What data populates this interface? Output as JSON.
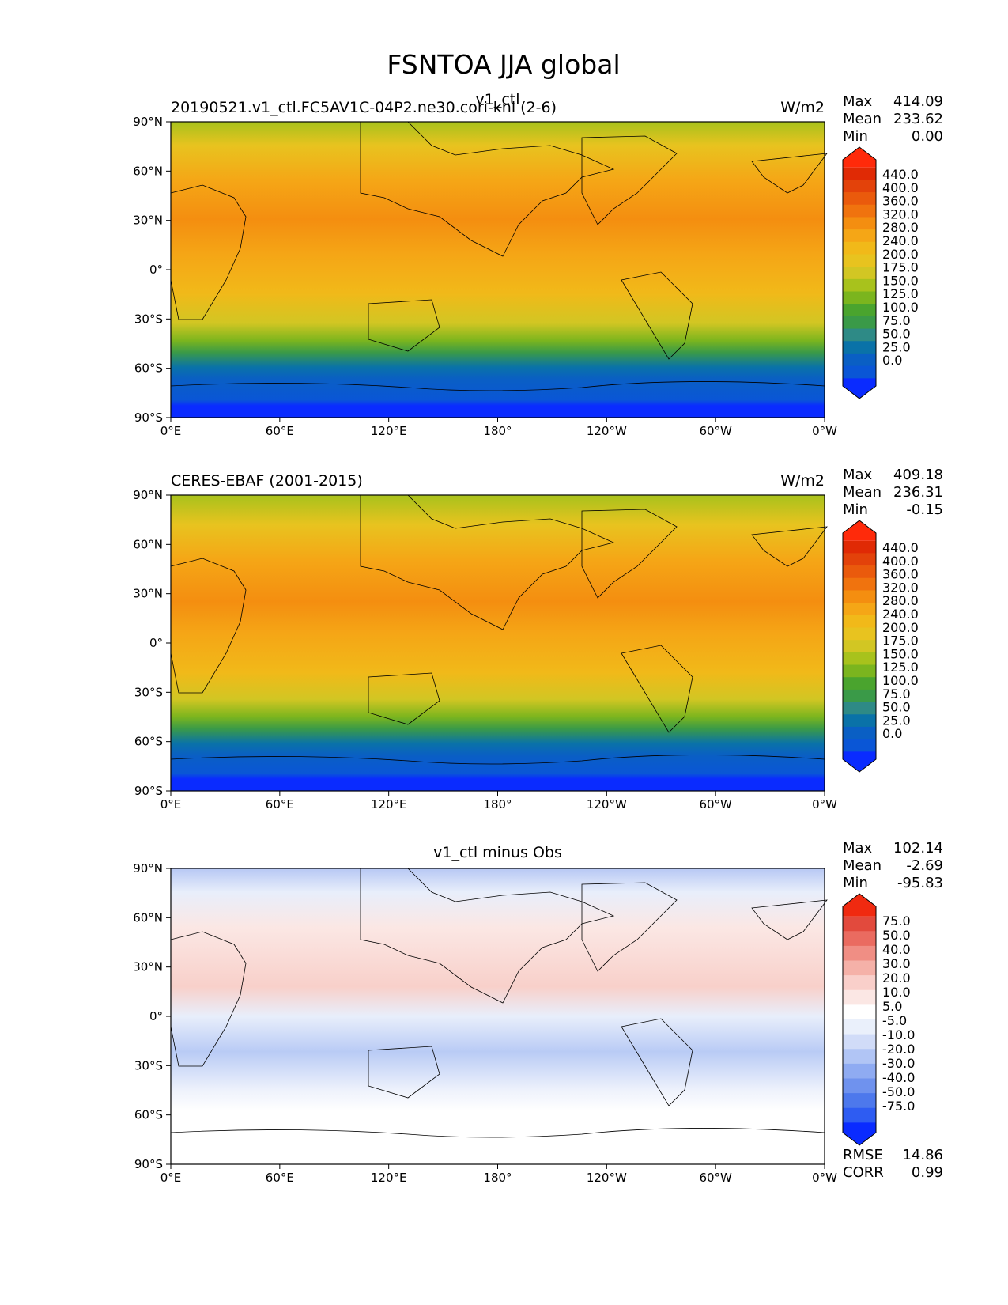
{
  "figure": {
    "title": "FSNTOA JJA global"
  },
  "colors": {
    "abs_levels": [
      "#0a2bff",
      "#0a56d6",
      "#0a5fc4",
      "#0a72a8",
      "#2e8a86",
      "#3a9a48",
      "#4aa42e",
      "#7bb51e",
      "#a8c21c",
      "#d2c623",
      "#e8c31f",
      "#f1b919",
      "#f5a616",
      "#f48e10",
      "#f0730e",
      "#ea5a0c",
      "#e3420a",
      "#e02a05",
      "#ff2a0a"
    ],
    "diff_levels": [
      "#0a2bff",
      "#2e5cf2",
      "#4d78ec",
      "#6f92ee",
      "#8fabf2",
      "#b1c5f5",
      "#d1dcf8",
      "#eaf0fb",
      "#ffffff",
      "#fbe7e4",
      "#f9cfca",
      "#f5b1a8",
      "#f08e84",
      "#ea6b60",
      "#e24a3d",
      "#f02a10"
    ]
  },
  "panels": [
    {
      "id": "test",
      "title_left": "20190521.v1_ctl.FC5AV1C-04P2.ne30.cori-knl (2-6)",
      "title_center": "v1_ctl",
      "title_right": "W/m2",
      "stats": [
        {
          "label": "Max",
          "value": "414.09"
        },
        {
          "label": "Mean",
          "value": "233.62"
        },
        {
          "label": "Min",
          "value": "0.00"
        }
      ],
      "colorbar_labels": [
        "440.0",
        "400.0",
        "360.0",
        "320.0",
        "280.0",
        "240.0",
        "200.0",
        "175.0",
        "150.0",
        "125.0",
        "100.0",
        "75.0",
        "50.0",
        "25.0",
        "0.0"
      ]
    },
    {
      "id": "ref",
      "title_left": "CERES-EBAF (2001-2015)",
      "title_center": "",
      "title_right": "W/m2",
      "stats": [
        {
          "label": "Max",
          "value": "409.18"
        },
        {
          "label": "Mean",
          "value": "236.31"
        },
        {
          "label": "Min",
          "value": "-0.15"
        }
      ],
      "colorbar_labels": [
        "440.0",
        "400.0",
        "360.0",
        "320.0",
        "280.0",
        "240.0",
        "200.0",
        "175.0",
        "150.0",
        "125.0",
        "100.0",
        "75.0",
        "50.0",
        "25.0",
        "0.0"
      ]
    },
    {
      "id": "diff",
      "title_left": "",
      "title_center": "v1_ctl minus Obs",
      "title_right": "",
      "stats": [
        {
          "label": "Max",
          "value": "102.14"
        },
        {
          "label": "Mean",
          "value": "-2.69"
        },
        {
          "label": "Min",
          "value": "-95.83"
        }
      ],
      "extra_stats": [
        {
          "label": "RMSE",
          "value": "14.86"
        },
        {
          "label": "CORR",
          "value": "0.99"
        }
      ],
      "colorbar_labels": [
        "75.0",
        "50.0",
        "40.0",
        "30.0",
        "20.0",
        "10.0",
        "5.0",
        "-5.0",
        "-10.0",
        "-20.0",
        "-30.0",
        "-40.0",
        "-50.0",
        "-75.0"
      ]
    }
  ],
  "axes": {
    "lat_ticks": [
      "90°N",
      "60°N",
      "30°N",
      "0°",
      "30°S",
      "60°S",
      "90°S"
    ],
    "lon_ticks": [
      "0°E",
      "60°E",
      "120°E",
      "180°",
      "120°W",
      "60°W",
      "0°W"
    ]
  },
  "chart_data": [
    {
      "type": "heatmap",
      "title": "20190521.v1_ctl.FC5AV1C-04P2.ne30.cori-knl (2-6)",
      "subtitle": "v1_ctl",
      "units": "W/m2",
      "x_ticks": [
        "0°E",
        "60°E",
        "120°E",
        "180°",
        "120°W",
        "60°W",
        "0°W"
      ],
      "y_ticks": [
        "90°N",
        "60°N",
        "30°N",
        "0°",
        "30°S",
        "60°S",
        "90°S"
      ],
      "levels": [
        0,
        25,
        50,
        75,
        100,
        125,
        150,
        175,
        200,
        240,
        280,
        320,
        360,
        400,
        440
      ],
      "stats": {
        "max": 414.09,
        "mean": 233.62,
        "min": 0.0
      }
    },
    {
      "type": "heatmap",
      "title": "CERES-EBAF (2001-2015)",
      "units": "W/m2",
      "x_ticks": [
        "0°E",
        "60°E",
        "120°E",
        "180°",
        "120°W",
        "60°W",
        "0°W"
      ],
      "y_ticks": [
        "90°N",
        "60°N",
        "30°N",
        "0°",
        "30°S",
        "60°S",
        "90°S"
      ],
      "levels": [
        0,
        25,
        50,
        75,
        100,
        125,
        150,
        175,
        200,
        240,
        280,
        320,
        360,
        400,
        440
      ],
      "stats": {
        "max": 409.18,
        "mean": 236.31,
        "min": -0.15
      }
    },
    {
      "type": "heatmap",
      "title": "v1_ctl minus Obs",
      "x_ticks": [
        "0°E",
        "60°E",
        "120°E",
        "180°",
        "120°W",
        "60°W",
        "0°W"
      ],
      "y_ticks": [
        "90°N",
        "60°N",
        "30°N",
        "0°",
        "30°S",
        "60°S",
        "90°S"
      ],
      "levels": [
        -75,
        -50,
        -40,
        -30,
        -20,
        -10,
        -5,
        5,
        10,
        20,
        30,
        40,
        50,
        75
      ],
      "stats": {
        "max": 102.14,
        "mean": -2.69,
        "min": -95.83,
        "rmse": 14.86,
        "corr": 0.99
      }
    }
  ]
}
